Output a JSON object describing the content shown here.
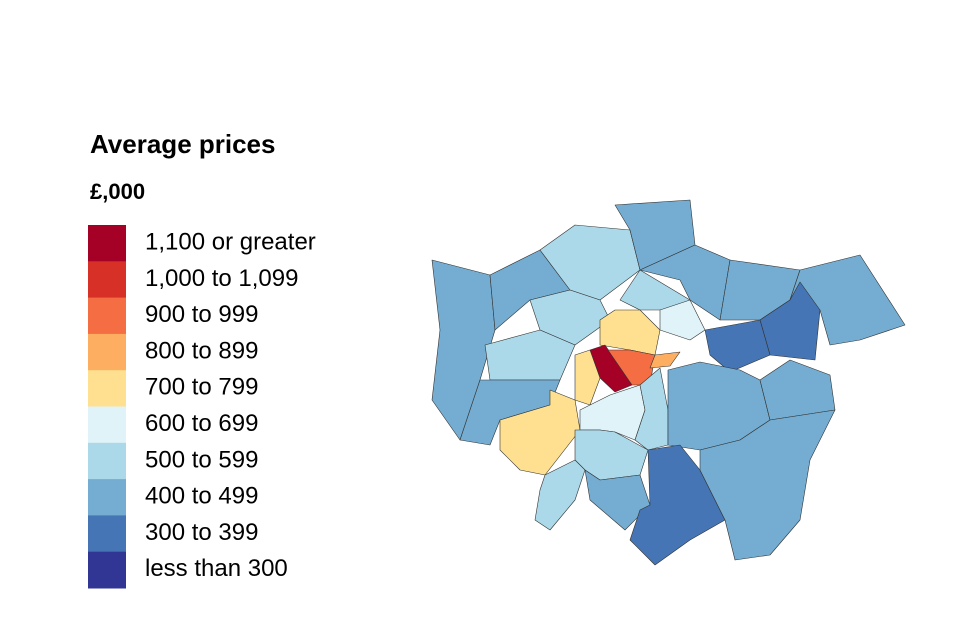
{
  "legend": {
    "title": "Average prices",
    "subtitle": "£,000",
    "items": [
      {
        "label": "1,100 or greater",
        "color": "#a50026"
      },
      {
        "label": "1,000 to 1,099",
        "color": "#d73027"
      },
      {
        "label": "900 to 999",
        "color": "#f46d43"
      },
      {
        "label": "800 to 899",
        "color": "#fdae61"
      },
      {
        "label": "700 to 799",
        "color": "#fee090"
      },
      {
        "label": "600 to 699",
        "color": "#e0f3f8"
      },
      {
        "label": "500 to 599",
        "color": "#abd9e9"
      },
      {
        "label": "400 to 499",
        "color": "#74add1"
      },
      {
        "label": "300 to 399",
        "color": "#4575b4"
      },
      {
        "label": "less than 300",
        "color": "#313695"
      }
    ]
  }
}
